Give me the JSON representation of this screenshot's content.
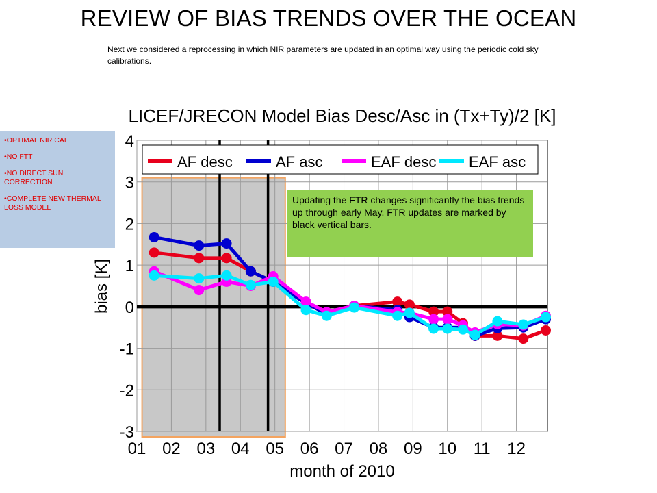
{
  "slide": {
    "title": "REVIEW OF BIAS TRENDS OVER THE OCEAN",
    "intro": "Next we considered a reprocessing in which NIR parameters are updated in an optimal way using the periodic cold sky calibrations."
  },
  "sidebar": {
    "items": [
      {
        "label": "OPTIMAL NIR CAL"
      },
      {
        "label": "NO FTT"
      },
      {
        "label": "NO DIRECT SUN CORRECTION"
      },
      {
        "label": "COMPLETE NEW THERMAL LOSS MODEL"
      }
    ]
  },
  "annotation": {
    "text": "Updating the FTR changes significantly the bias trends up through early May. FTR updates are marked by black vertical bars."
  },
  "chart_data": {
    "type": "line",
    "title": "LICEF/JRECON Model Bias Desc/Asc in (Tx+Ty)/2 [K]",
    "xlabel": "month of 2010",
    "ylabel": "bias [K]",
    "xlim": [
      1,
      12.9
    ],
    "ylim": [
      -3,
      4
    ],
    "xticks": [
      {
        "value": 1,
        "label": "01"
      },
      {
        "value": 2,
        "label": "02"
      },
      {
        "value": 3,
        "label": "03"
      },
      {
        "value": 4,
        "label": "04"
      },
      {
        "value": 5,
        "label": "05"
      },
      {
        "value": 6,
        "label": "06"
      },
      {
        "value": 7,
        "label": "07"
      },
      {
        "value": 8,
        "label": "08"
      },
      {
        "value": 9,
        "label": "09"
      },
      {
        "value": 10,
        "label": "10"
      },
      {
        "value": 11,
        "label": "11"
      },
      {
        "value": 12,
        "label": "12"
      }
    ],
    "yticks": [
      {
        "value": 4,
        "label": "4"
      },
      {
        "value": 3,
        "label": "3"
      },
      {
        "value": 2,
        "label": "2"
      },
      {
        "value": 1,
        "label": "1"
      },
      {
        "value": 0,
        "label": "0"
      },
      {
        "value": -1,
        "label": "-1"
      },
      {
        "value": -2,
        "label": "-2"
      },
      {
        "value": -3,
        "label": "-3"
      }
    ],
    "grid": true,
    "legend_position": "top",
    "shaded_region": {
      "x": [
        1.15,
        5.3
      ],
      "fill": "#c8c8c8",
      "border": "#f4a460"
    },
    "vertical_markers": [
      3.4,
      4.8
    ],
    "series": [
      {
        "name": "AF desc",
        "color": "#e8001c",
        "points": [
          [
            1.5,
            1.3
          ],
          [
            2.8,
            1.17
          ],
          [
            3.6,
            1.17
          ],
          [
            4.3,
            0.85
          ],
          [
            4.95,
            0.6
          ],
          [
            5.9,
            0.08
          ],
          [
            6.5,
            -0.17
          ],
          [
            7.3,
            0.02
          ],
          [
            8.55,
            0.12
          ],
          [
            8.9,
            0.05
          ],
          [
            9.6,
            -0.12
          ],
          [
            10.0,
            -0.12
          ],
          [
            10.45,
            -0.4
          ],
          [
            10.8,
            -0.7
          ],
          [
            11.45,
            -0.7
          ],
          [
            12.2,
            -0.77
          ],
          [
            12.85,
            -0.57
          ]
        ]
      },
      {
        "name": "AF asc",
        "color": "#0000d0",
        "points": [
          [
            1.5,
            1.67
          ],
          [
            2.8,
            1.47
          ],
          [
            3.6,
            1.52
          ],
          [
            4.3,
            0.85
          ],
          [
            4.95,
            0.6
          ],
          [
            5.9,
            0.08
          ],
          [
            6.5,
            -0.17
          ],
          [
            7.3,
            0.02
          ],
          [
            8.55,
            -0.08
          ],
          [
            8.9,
            -0.25
          ],
          [
            9.6,
            -0.5
          ],
          [
            10.0,
            -0.5
          ],
          [
            10.45,
            -0.5
          ],
          [
            10.8,
            -0.7
          ],
          [
            11.45,
            -0.52
          ],
          [
            12.2,
            -0.5
          ],
          [
            12.85,
            -0.3
          ]
        ]
      },
      {
        "name": "EAF desc",
        "color": "#ff00ff",
        "points": [
          [
            1.5,
            0.85
          ],
          [
            2.8,
            0.4
          ],
          [
            3.6,
            0.6
          ],
          [
            4.3,
            0.5
          ],
          [
            4.95,
            0.73
          ],
          [
            5.9,
            0.12
          ],
          [
            6.5,
            -0.13
          ],
          [
            7.3,
            0.02
          ],
          [
            8.55,
            -0.13
          ],
          [
            8.9,
            -0.15
          ],
          [
            9.6,
            -0.3
          ],
          [
            10.0,
            -0.3
          ],
          [
            10.45,
            -0.45
          ],
          [
            10.8,
            -0.62
          ],
          [
            11.45,
            -0.42
          ],
          [
            12.2,
            -0.45
          ],
          [
            12.85,
            -0.22
          ]
        ]
      },
      {
        "name": "EAF asc",
        "color": "#00e8ff",
        "points": [
          [
            1.5,
            0.75
          ],
          [
            2.8,
            0.68
          ],
          [
            3.6,
            0.75
          ],
          [
            4.3,
            0.52
          ],
          [
            4.95,
            0.6
          ],
          [
            5.9,
            -0.08
          ],
          [
            6.5,
            -0.22
          ],
          [
            7.3,
            -0.02
          ],
          [
            8.55,
            -0.22
          ],
          [
            8.9,
            -0.15
          ],
          [
            9.6,
            -0.53
          ],
          [
            10.0,
            -0.53
          ],
          [
            10.45,
            -0.55
          ],
          [
            10.8,
            -0.68
          ],
          [
            11.45,
            -0.35
          ],
          [
            12.2,
            -0.43
          ],
          [
            12.85,
            -0.25
          ]
        ]
      }
    ]
  }
}
